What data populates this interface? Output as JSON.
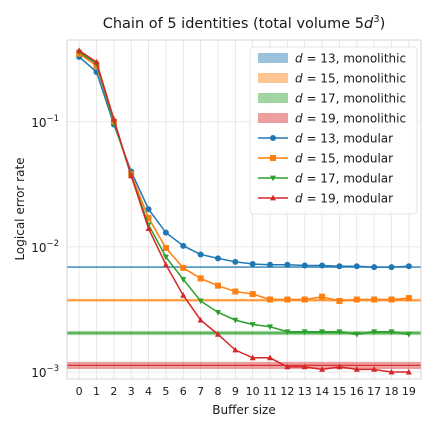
{
  "chart_data": {
    "type": "line",
    "title": "Chain of 5 identities (total volume 5d³)",
    "title_parts": {
      "main": "Chain of 5 identities (total volume 5",
      "var": "d",
      "sup": "3",
      "end": ")"
    },
    "xlabel": "Buffer size",
    "ylabel": "Logical error rate",
    "y_scale": "log",
    "xlim": [
      -0.7,
      19.7
    ],
    "ylim": [
      0.00088,
      0.45
    ],
    "x_ticks": [
      0,
      1,
      2,
      3,
      4,
      5,
      6,
      7,
      8,
      9,
      10,
      11,
      12,
      13,
      14,
      15,
      16,
      17,
      18,
      19
    ],
    "y_ticks": [
      {
        "value": 0.1,
        "base": "10",
        "exp": "−1"
      },
      {
        "value": 0.01,
        "base": "10",
        "exp": "−2"
      },
      {
        "value": 0.001,
        "base": "10",
        "exp": "−3"
      }
    ],
    "grid": true,
    "legend_position": "top-right",
    "monolithic": [
      {
        "name": "d = 13, monolithic",
        "d": "13",
        "value": 0.0069,
        "color": "#1f77b4",
        "band": [
          0.00685,
          0.00695
        ]
      },
      {
        "name": "d = 15, monolithic",
        "d": "15",
        "value": 0.00375,
        "color": "#ff7f0e",
        "band": [
          0.00365,
          0.00385
        ]
      },
      {
        "name": "d = 17, monolithic",
        "d": "17",
        "value": 0.00205,
        "color": "#2ca02c",
        "band": [
          0.00197,
          0.00213
        ]
      },
      {
        "name": "d = 19, monolithic",
        "d": "19",
        "value": 0.00113,
        "color": "#d62728",
        "band": [
          0.00106,
          0.00121
        ]
      }
    ],
    "x": [
      0,
      1,
      2,
      3,
      4,
      5,
      6,
      7,
      8,
      9,
      10,
      11,
      12,
      13,
      14,
      15,
      16,
      17,
      18,
      19
    ],
    "series": [
      {
        "name": "d = 13, modular",
        "d": "13",
        "color": "#1f77b4",
        "marker": "circle",
        "values": [
          0.33,
          0.25,
          0.095,
          0.04,
          0.02,
          0.013,
          0.0102,
          0.0087,
          0.0081,
          0.0076,
          0.0073,
          0.0072,
          0.0072,
          0.0071,
          0.0071,
          0.007,
          0.007,
          0.0069,
          0.0069,
          0.007
        ]
      },
      {
        "name": "d = 15, modular",
        "d": "15",
        "color": "#ff7f0e",
        "marker": "square",
        "values": [
          0.35,
          0.28,
          0.1,
          0.038,
          0.017,
          0.0098,
          0.0068,
          0.0056,
          0.0049,
          0.0044,
          0.0042,
          0.0038,
          0.0038,
          0.0038,
          0.004,
          0.0037,
          0.0038,
          0.0038,
          0.0038,
          0.0039
        ]
      },
      {
        "name": "d = 17, modular",
        "d": "17",
        "color": "#2ca02c",
        "marker": "triangle-down",
        "values": [
          0.36,
          0.29,
          0.1,
          0.037,
          0.015,
          0.0083,
          0.0055,
          0.0037,
          0.003,
          0.0026,
          0.0024,
          0.0023,
          0.0021,
          0.0021,
          0.0021,
          0.0021,
          0.002,
          0.0021,
          0.0021,
          0.002
        ]
      },
      {
        "name": "d = 19, modular",
        "d": "19",
        "color": "#d62728",
        "marker": "triangle-up",
        "values": [
          0.37,
          0.3,
          0.105,
          0.037,
          0.014,
          0.0072,
          0.0041,
          0.0026,
          0.002,
          0.0015,
          0.0013,
          0.0013,
          0.0011,
          0.0011,
          0.00105,
          0.0011,
          0.00105,
          0.00105,
          0.001,
          0.001
        ]
      }
    ]
  }
}
